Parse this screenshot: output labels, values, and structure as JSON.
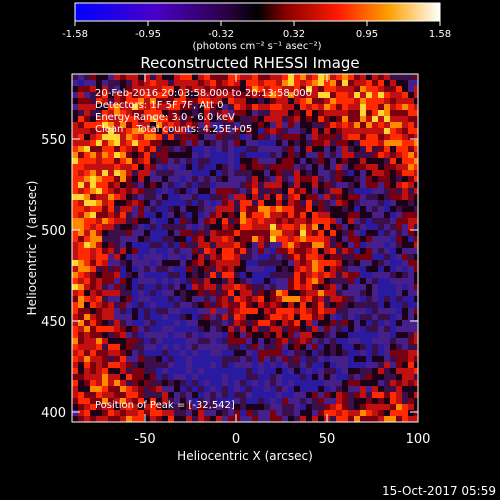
{
  "colorbar": {
    "min_label": "-1.58",
    "tick_labels": [
      "-1.58",
      "-0.95",
      "-0.32",
      "0.32",
      "0.95",
      "1.58"
    ],
    "units_label": "(photons cm⁻² s⁻¹ asec⁻²)",
    "colors": [
      "#0000ff",
      "#7a00a8",
      "#000000",
      "#ff0000",
      "#ffa000",
      "#ffffff"
    ]
  },
  "plot": {
    "title": "Reconstructed RHESSI Image",
    "annotation_lines": [
      "20-Feb-2016 20:03:58.000 to 20:13:58.000",
      "Detectors: 1F 5F 7F, Att 0",
      "Energy Range: 3.0 - 6.0 keV",
      "Clean    Total counts: 4.25E+05"
    ],
    "peak_label": "Position of Peak = [-32,542]",
    "xlabel": "Heliocentric X (arcsec)",
    "ylabel": "Heliocentric Y (arcsec)",
    "x_ticks": [
      "-50",
      "0",
      "50",
      "100"
    ],
    "y_ticks": [
      "400",
      "450",
      "500",
      "550"
    ],
    "x_range": [
      -90,
      100
    ],
    "y_range": [
      395,
      590
    ]
  },
  "footer": {
    "timestamp": "15-Oct-2017 05:59"
  },
  "chart_data": {
    "type": "heatmap",
    "title": "Reconstructed RHESSI Image",
    "xlabel": "Heliocentric X (arcsec)",
    "ylabel": "Heliocentric Y (arcsec)",
    "xlim": [
      -90,
      100
    ],
    "ylim": [
      395,
      590
    ],
    "colorbar_range": [
      -1.58,
      1.58
    ],
    "x_ticks": [
      -50,
      0,
      50,
      100
    ],
    "y_ticks": [
      400,
      450,
      500,
      550
    ],
    "colorbar_ticks": [
      -1.58,
      -0.95,
      -0.32,
      0.32,
      0.95,
      1.58
    ],
    "peak_position": [
      -32,
      542
    ],
    "grid": false
  }
}
